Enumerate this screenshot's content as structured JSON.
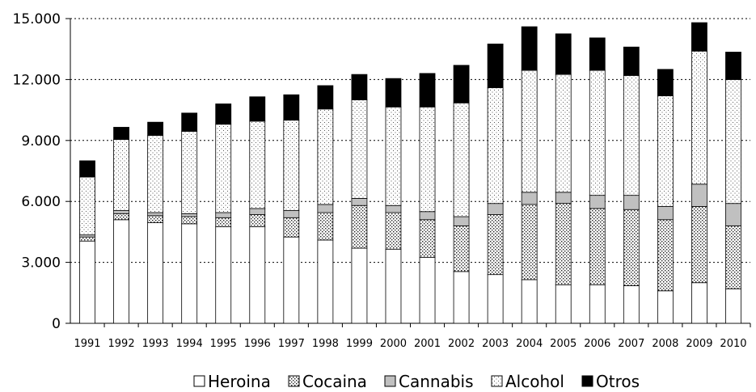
{
  "chart_data": {
    "type": "bar",
    "stacked": true,
    "categories": [
      "1991",
      "1992",
      "1993",
      "1994",
      "1995",
      "1996",
      "1997",
      "1998",
      "1999",
      "2000",
      "2001",
      "2002",
      "2003",
      "2004",
      "2005",
      "2006",
      "2007",
      "2008",
      "2009",
      "2010"
    ],
    "series": [
      {
        "name": "Heroina",
        "pattern": "white",
        "values": [
          4050,
          5100,
          4950,
          4900,
          4750,
          4750,
          4250,
          4100,
          3700,
          3650,
          3250,
          2550,
          2400,
          2150,
          1900,
          1900,
          1850,
          1600,
          2000,
          1700
        ]
      },
      {
        "name": "Cocaina",
        "pattern": "dense-dots",
        "values": [
          200,
          300,
          350,
          350,
          450,
          600,
          950,
          1350,
          2100,
          1800,
          1850,
          2250,
          2950,
          3700,
          4000,
          3750,
          3750,
          3500,
          3750,
          3100
        ]
      },
      {
        "name": "Cannabis",
        "pattern": "gray",
        "values": [
          100,
          150,
          150,
          150,
          250,
          300,
          350,
          400,
          350,
          350,
          400,
          450,
          550,
          600,
          550,
          650,
          700,
          650,
          1100,
          1100
        ]
      },
      {
        "name": "Alcohol",
        "pattern": "sparse-dots",
        "values": [
          2850,
          3500,
          3800,
          4050,
          4350,
          4300,
          4450,
          4700,
          4850,
          4850,
          5150,
          5600,
          5700,
          6000,
          5800,
          6150,
          5900,
          5450,
          6550,
          6100
        ]
      },
      {
        "name": "Otros",
        "pattern": "black",
        "values": [
          800,
          600,
          650,
          900,
          1000,
          1200,
          1250,
          1150,
          1250,
          1400,
          1650,
          1850,
          2150,
          2150,
          2000,
          1600,
          1400,
          1300,
          1400,
          1350
        ]
      }
    ],
    "yticks": [
      "0",
      "3.000",
      "6.000",
      "9.000",
      "12.000",
      "15.000"
    ],
    "ytick_values": [
      0,
      3000,
      6000,
      9000,
      12000,
      15000
    ],
    "ylim": [
      0,
      15000
    ],
    "grid": "horizontal-dotted",
    "legend_position": "bottom"
  }
}
